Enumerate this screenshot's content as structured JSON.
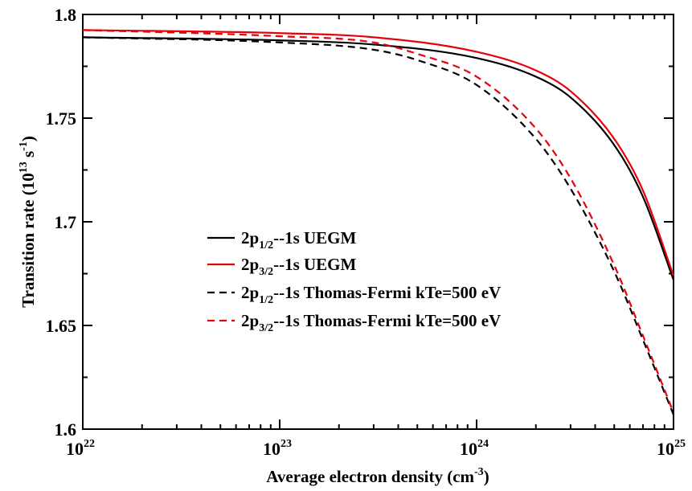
{
  "chart_data": {
    "type": "line",
    "xscale": "log",
    "x_range": [
      1e+22,
      1e+25
    ],
    "y_range": [
      1.6,
      1.8
    ],
    "grid": false,
    "legend_position": "center-left",
    "xlabel": "Average electron density (cm-3)",
    "xlabel_main": "Average electron density (cm",
    "xlabel_sup": "-3",
    "xlabel_close": ")",
    "ylabel": "Transition rate (10 13 s -1)",
    "ylabel_main": "Transition rate (10",
    "ylabel_sup1": "13",
    "ylabel_mid": " s",
    "ylabel_sup2": "-1",
    "ylabel_close": ")",
    "x_ticks": [
      {
        "value": 1e+22,
        "base": "10",
        "exp": "22"
      },
      {
        "value": 1e+23,
        "base": "10",
        "exp": "23"
      },
      {
        "value": 1e+24,
        "base": "10",
        "exp": "24"
      },
      {
        "value": 1e+25,
        "base": "10",
        "exp": "25"
      }
    ],
    "y_ticks": [
      {
        "value": 1.6,
        "label": "1.6"
      },
      {
        "value": 1.65,
        "label": "1.65"
      },
      {
        "value": 1.7,
        "label": "1.7"
      },
      {
        "value": 1.75,
        "label": "1.75"
      },
      {
        "value": 1.8,
        "label": "1.8"
      }
    ],
    "series": [
      {
        "name": "2p1/2--1s UEGM",
        "label_pre": "2p",
        "label_sub": "1/2",
        "label_post": "--1s UEGM",
        "color": "#000000",
        "dash": false,
        "points": [
          [
            1e+22,
            1.789
          ],
          [
            1e+23,
            1.7875
          ],
          [
            3e+23,
            1.7855
          ],
          [
            1e+24,
            1.779
          ],
          [
            2e+24,
            1.77
          ],
          [
            3e+24,
            1.76
          ],
          [
            5e+24,
            1.737
          ],
          [
            7e+24,
            1.712
          ],
          [
            1e+25,
            1.672
          ]
        ]
      },
      {
        "name": "2p3/2--1s UEGM",
        "label_pre": "2p",
        "label_sub": "3/2",
        "label_post": "--1s UEGM",
        "color": "#e8000b",
        "dash": false,
        "points": [
          [
            1e+22,
            1.7925
          ],
          [
            1e+23,
            1.791
          ],
          [
            3e+23,
            1.789
          ],
          [
            1e+24,
            1.782
          ],
          [
            2e+24,
            1.773
          ],
          [
            3e+24,
            1.763
          ],
          [
            5e+24,
            1.74
          ],
          [
            7e+24,
            1.715
          ],
          [
            1e+25,
            1.674
          ]
        ]
      },
      {
        "name": "2p1/2--1s Thomas-Fermi kTe=500 eV",
        "label_pre": "2p",
        "label_sub": "1/2",
        "label_post": "--1s Thomas-Fermi kTe=500 eV",
        "color": "#000000",
        "dash": true,
        "points": [
          [
            1e+22,
            1.789
          ],
          [
            1e+23,
            1.7865
          ],
          [
            3e+23,
            1.783
          ],
          [
            5e+23,
            1.778
          ],
          [
            1e+24,
            1.766
          ],
          [
            2e+24,
            1.74
          ],
          [
            3e+24,
            1.716
          ],
          [
            5e+24,
            1.676
          ],
          [
            7e+24,
            1.643
          ],
          [
            1e+25,
            1.607
          ]
        ]
      },
      {
        "name": "2p3/2--1s Thomas-Fermi kTe=500 eV",
        "label_pre": "2p",
        "label_sub": "3/2",
        "label_post": "--1s Thomas-Fermi kTe=500 eV",
        "color": "#e8000b",
        "dash": true,
        "points": [
          [
            1e+22,
            1.7925
          ],
          [
            1e+23,
            1.7895
          ],
          [
            3e+23,
            1.7865
          ],
          [
            5e+23,
            1.781
          ],
          [
            1e+24,
            1.77
          ],
          [
            2e+24,
            1.745
          ],
          [
            3e+24,
            1.721
          ],
          [
            5e+24,
            1.679
          ],
          [
            7e+24,
            1.645
          ],
          [
            1e+25,
            1.608
          ]
        ]
      }
    ]
  }
}
